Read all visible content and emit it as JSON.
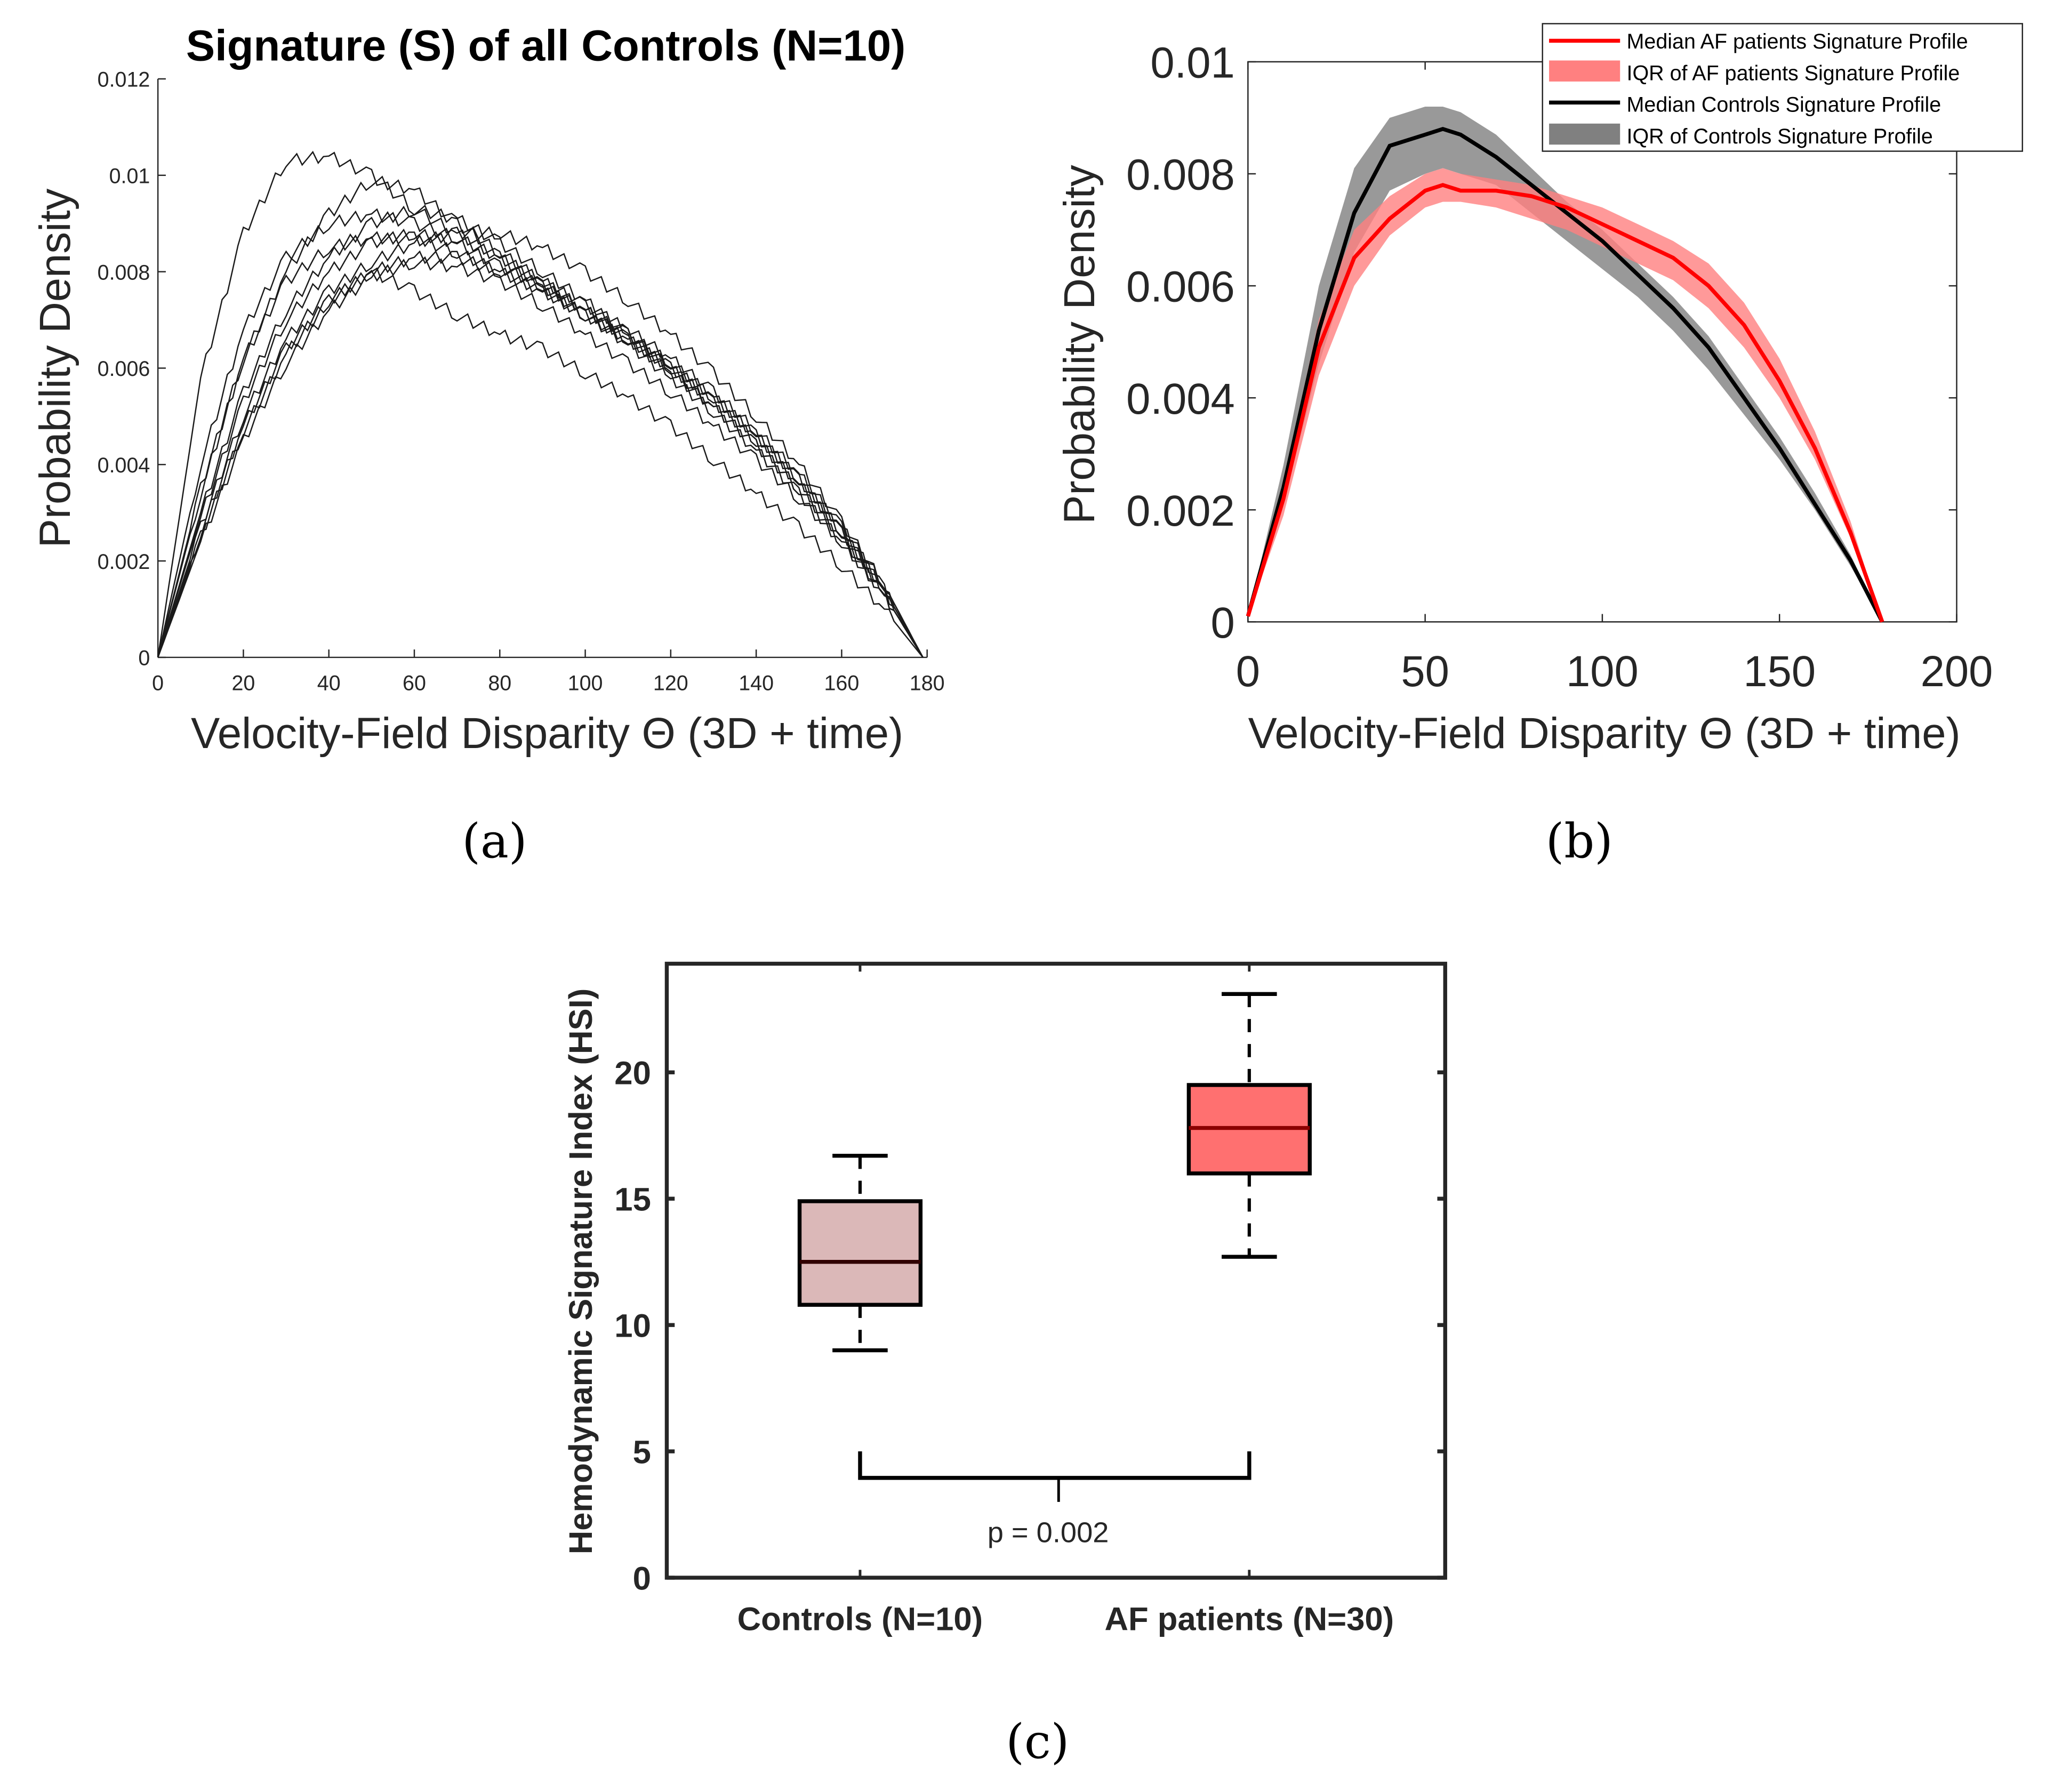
{
  "figure": {
    "captions": [
      "(a)",
      "(b)",
      "(c)"
    ]
  },
  "colors": {
    "af_median": "#ff0000",
    "af_iqr": "#ff8080",
    "controls_median": "#000000",
    "controls_iqr": "#808080",
    "controls_box": "#dbb8b8",
    "af_box": "#ff7070",
    "median_line_controls": "#300000",
    "median_line_af": "#8b0000"
  },
  "chart_data": [
    {
      "id": "a",
      "type": "line",
      "title": "Signature (S) of all Controls (N=10)",
      "xlabel": "Velocity-Field Disparity Θ (3D + time)",
      "ylabel": "Probability Density",
      "xlim": [
        0,
        180
      ],
      "ylim": [
        0,
        0.012
      ],
      "xticks": [
        0,
        20,
        40,
        60,
        80,
        100,
        120,
        140,
        160,
        180
      ],
      "xtick_labels": [
        "0",
        "20",
        "40",
        "60",
        "80",
        "100",
        "120",
        "140",
        "160",
        "180"
      ],
      "yticks": [
        0,
        0.002,
        0.004,
        0.006,
        0.008,
        0.01,
        0.012
      ],
      "ytick_labels": [
        "0",
        "0.002",
        "0.004",
        "0.006",
        "0.008",
        "0.01",
        "0.012"
      ],
      "grid": false,
      "x": [
        0,
        10,
        20,
        30,
        40,
        50,
        60,
        70,
        80,
        90,
        100,
        110,
        120,
        130,
        140,
        150,
        160,
        170,
        179
      ],
      "series": [
        {
          "name": "Control 1",
          "values": [
            0,
            0.0058,
            0.0088,
            0.0103,
            0.0104,
            0.01,
            0.0093,
            0.0088,
            0.0083,
            0.0078,
            0.0072,
            0.0066,
            0.0059,
            0.0052,
            0.0044,
            0.0035,
            0.0025,
            0.0013,
            0
          ]
        },
        {
          "name": "Control 2",
          "values": [
            0,
            0.0035,
            0.0062,
            0.008,
            0.0092,
            0.0099,
            0.0097,
            0.009,
            0.0084,
            0.0078,
            0.0073,
            0.0068,
            0.0062,
            0.0055,
            0.0047,
            0.0038,
            0.0027,
            0.0015,
            0
          ]
        },
        {
          "name": "Control 3",
          "values": [
            0,
            0.004,
            0.0068,
            0.0083,
            0.009,
            0.0092,
            0.009,
            0.0087,
            0.0083,
            0.0077,
            0.0071,
            0.0065,
            0.0058,
            0.0051,
            0.0043,
            0.0034,
            0.0024,
            0.0013,
            0
          ]
        },
        {
          "name": "Control 4",
          "values": [
            0,
            0.003,
            0.0055,
            0.0072,
            0.0083,
            0.009,
            0.0093,
            0.0091,
            0.0086,
            0.008,
            0.0074,
            0.0067,
            0.006,
            0.0052,
            0.0044,
            0.0035,
            0.0025,
            0.0013,
            0
          ]
        },
        {
          "name": "Control 5",
          "values": [
            0,
            0.0027,
            0.005,
            0.0066,
            0.0076,
            0.0082,
            0.0086,
            0.0088,
            0.0088,
            0.0085,
            0.008,
            0.0074,
            0.0067,
            0.0059,
            0.005,
            0.004,
            0.0028,
            0.0015,
            0
          ]
        },
        {
          "name": "Control 6",
          "values": [
            0,
            0.0034,
            0.0062,
            0.0078,
            0.0085,
            0.0087,
            0.0087,
            0.0084,
            0.008,
            0.0076,
            0.0071,
            0.0066,
            0.006,
            0.0054,
            0.0046,
            0.0037,
            0.0026,
            0.0014,
            0
          ]
        },
        {
          "name": "Control 7",
          "values": [
            0,
            0.0029,
            0.0053,
            0.007,
            0.008,
            0.0086,
            0.0088,
            0.0086,
            0.0081,
            0.0077,
            0.0072,
            0.0067,
            0.0061,
            0.0054,
            0.0046,
            0.0037,
            0.0027,
            0.0014,
            0
          ]
        },
        {
          "name": "Control 8",
          "values": [
            0,
            0.0025,
            0.0047,
            0.0063,
            0.0074,
            0.008,
            0.0083,
            0.0083,
            0.008,
            0.0076,
            0.0071,
            0.0066,
            0.006,
            0.0053,
            0.0045,
            0.0036,
            0.0026,
            0.0014,
            0
          ]
        },
        {
          "name": "Control 9",
          "values": [
            0,
            0.0026,
            0.0048,
            0.0064,
            0.0074,
            0.008,
            0.0076,
            0.0071,
            0.0067,
            0.0064,
            0.0059,
            0.0054,
            0.0048,
            0.0041,
            0.0034,
            0.0027,
            0.0019,
            0.001,
            0
          ]
        },
        {
          "name": "Control 10",
          "values": [
            0,
            0.0024,
            0.0045,
            0.0061,
            0.0072,
            0.0079,
            0.0082,
            0.0081,
            0.0078,
            0.0073,
            0.0067,
            0.0061,
            0.0055,
            0.0048,
            0.0041,
            0.0033,
            0.0024,
            0.0013,
            0
          ]
        }
      ]
    },
    {
      "id": "b",
      "type": "area",
      "title": "",
      "xlabel": "Velocity-Field Disparity Θ (3D + time)",
      "ylabel": "Probability Density",
      "xlim": [
        0,
        200
      ],
      "ylim": [
        0,
        0.01
      ],
      "xticks": [
        0,
        50,
        100,
        150,
        200
      ],
      "xtick_labels": [
        "0",
        "50",
        "100",
        "150",
        "200"
      ],
      "yticks": [
        0,
        0.002,
        0.004,
        0.006,
        0.008,
        0.01
      ],
      "ytick_labels": [
        "0",
        "0.002",
        "0.004",
        "0.006",
        "0.008",
        "0.01"
      ],
      "grid": false,
      "legend_position": "top-right",
      "x": [
        0,
        10,
        20,
        30,
        40,
        50,
        55,
        60,
        70,
        80,
        90,
        100,
        110,
        120,
        130,
        140,
        150,
        160,
        170,
        179
      ],
      "series": [
        {
          "name": "IQR of Controls Signature Profile",
          "kind": "band",
          "low": [
            0.0001,
            0.0021,
            0.0046,
            0.0066,
            0.0077,
            0.008,
            0.0081,
            0.008,
            0.0078,
            0.0073,
            0.0068,
            0.0063,
            0.0058,
            0.0052,
            0.0045,
            0.0037,
            0.0029,
            0.002,
            0.001,
            0
          ],
          "high": [
            0.0001,
            0.0028,
            0.006,
            0.0081,
            0.009,
            0.0092,
            0.0092,
            0.0091,
            0.0087,
            0.0081,
            0.0075,
            0.007,
            0.0064,
            0.0058,
            0.0051,
            0.0042,
            0.0033,
            0.0023,
            0.0012,
            0
          ]
        },
        {
          "name": "IQR of AF patients Signature Profile",
          "kind": "band",
          "low": [
            0.0001,
            0.0019,
            0.0044,
            0.006,
            0.0069,
            0.0074,
            0.0075,
            0.0075,
            0.0074,
            0.0072,
            0.007,
            0.0067,
            0.0064,
            0.0061,
            0.0056,
            0.0049,
            0.004,
            0.0029,
            0.0015,
            0
          ],
          "high": [
            0.0001,
            0.0025,
            0.0054,
            0.007,
            0.0076,
            0.008,
            0.0081,
            0.008,
            0.0079,
            0.0078,
            0.0076,
            0.0074,
            0.0071,
            0.0068,
            0.0064,
            0.0057,
            0.0047,
            0.0034,
            0.0018,
            0
          ]
        },
        {
          "name": "Median Controls Signature Profile",
          "kind": "line",
          "values": [
            0.0001,
            0.0024,
            0.0052,
            0.0073,
            0.0085,
            0.0087,
            0.0088,
            0.0087,
            0.0083,
            0.0078,
            0.0073,
            0.0068,
            0.0062,
            0.0056,
            0.0049,
            0.004,
            0.0031,
            0.0021,
            0.0011,
            0
          ]
        },
        {
          "name": "Median AF patients Signature Profile",
          "kind": "line",
          "values": [
            0.0001,
            0.0022,
            0.0049,
            0.0065,
            0.0072,
            0.0077,
            0.0078,
            0.0077,
            0.0077,
            0.0076,
            0.0074,
            0.0071,
            0.0068,
            0.0065,
            0.006,
            0.0053,
            0.0043,
            0.0031,
            0.0016,
            0
          ]
        }
      ],
      "legend": [
        {
          "label": "Median AF patients Signature Profile",
          "kind": "line",
          "color_key": "af_median"
        },
        {
          "label": "IQR of AF patients Signature Profile",
          "kind": "patch",
          "color_key": "af_iqr"
        },
        {
          "label": "Median Controls Signature Profile",
          "kind": "line",
          "color_key": "controls_median"
        },
        {
          "label": "IQR of Controls Signature Profile",
          "kind": "patch",
          "color_key": "controls_iqr"
        }
      ]
    },
    {
      "id": "c",
      "type": "box",
      "title": "",
      "xlabel": "",
      "ylabel": "Hemodynamic Signature Index (HSI)",
      "ylim": [
        0,
        24.3
      ],
      "yticks": [
        0,
        5,
        10,
        15,
        20
      ],
      "ytick_labels": [
        "0",
        "5",
        "10",
        "15",
        "20"
      ],
      "grid": false,
      "categories": [
        "Controls (N=10)",
        "AF patients (N=30)"
      ],
      "boxes": [
        {
          "name": "Controls (N=10)",
          "whisker_low": 9.0,
          "q1": 10.8,
          "median": 12.5,
          "q3": 14.9,
          "whisker_high": 16.7,
          "color_key": "controls_box",
          "median_color_key": "median_line_controls"
        },
        {
          "name": "AF patients (N=30)",
          "whisker_low": 12.7,
          "q1": 16.0,
          "median": 17.8,
          "q3": 19.5,
          "whisker_high": 23.1,
          "color_key": "af_box",
          "median_color_key": "median_line_af"
        }
      ],
      "significance": {
        "label": "p = 0.002",
        "bracket_y": 3.95,
        "bracket_top": 5.0,
        "stem_bottom": 3.0
      }
    }
  ]
}
